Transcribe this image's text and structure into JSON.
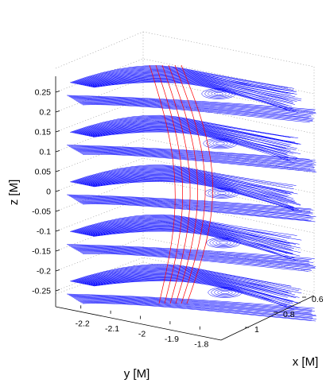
{
  "chart_data": {
    "type": "line",
    "subtype": "3d-streamlines",
    "title": "",
    "xlabel": "x [M]",
    "ylabel": "y [M]",
    "zlabel": "z [M]",
    "x_ticks": [
      "0.6",
      "0.8",
      "1"
    ],
    "y_ticks": [
      "-2.2",
      "-2.1",
      "-2",
      "-1.9",
      "-1.8"
    ],
    "z_ticks": [
      "0.25",
      "0.2",
      "0.15",
      "0.1",
      "0.05",
      "0",
      "-0.05",
      "-0.1",
      "-0.15",
      "-0.2",
      "-0.25"
    ],
    "xlim": [
      0.5,
      1.1
    ],
    "ylim": [
      -2.25,
      -1.75
    ],
    "zlim": [
      -0.28,
      0.28
    ],
    "grid": true,
    "series": [
      {
        "color": "#0000ff",
        "z_levels": [
          0.25,
          0.125,
          0.0,
          -0.125,
          -0.25
        ]
      },
      {
        "color": "#ff0000",
        "line_count": 6
      }
    ]
  }
}
